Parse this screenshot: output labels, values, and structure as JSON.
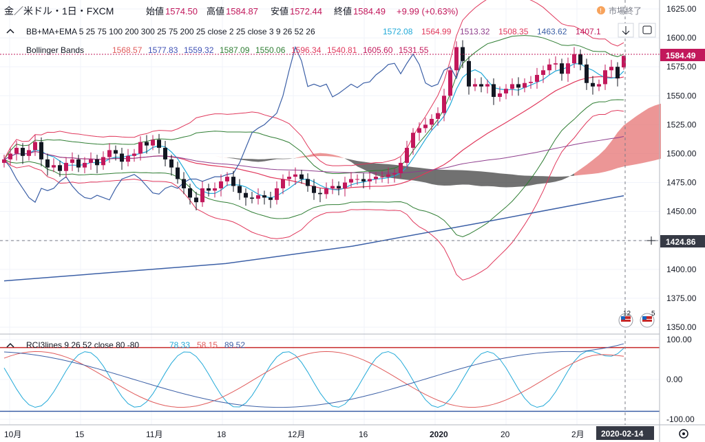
{
  "header": {
    "symbol": "金／米ドル・1日・FXCM",
    "open_label": "始値",
    "open": "1574.50",
    "high_label": "高値",
    "high": "1584.87",
    "low_label": "安値",
    "low": "1572.44",
    "close_label": "終値",
    "close": "1584.49",
    "change": "+9.99 (+0.63%)",
    "market_status": "市場終了",
    "market_status_icon": "info-icon"
  },
  "indicators": {
    "bb_ma_ema": {
      "name": "BB+MA+EMA 5 25 75 100 200 300 25 75 200 25 close 2 25 close 3 9 26 52 26",
      "values": [
        "1572.08",
        "1564.99",
        "1513.32",
        "1508.35",
        "1463.62",
        "1407.1"
      ],
      "colors": [
        "#21a9d8",
        "#e0375b",
        "#8e3d8d",
        "#e0375b",
        "#3b5fa6",
        "#c2185b"
      ]
    },
    "bollinger": {
      "name": "Bollinger Bands",
      "values": [
        "1568.57",
        "1577.83",
        "1559.32",
        "1587.09",
        "1550.06",
        "1596.34",
        "1540.81",
        "1605.60",
        "1531.55"
      ],
      "colors": [
        "#e05a5a",
        "#3f51b5",
        "#3f51b5",
        "#2e7d32",
        "#2e7d32",
        "#e0375b",
        "#e0375b",
        "#c2185b",
        "#c2185b"
      ]
    },
    "rci": {
      "name": "RCI3lines 9 26 52 close 80 -80",
      "values": [
        "78.33",
        "58.15",
        "89.52"
      ],
      "colors": [
        "#21a9d8",
        "#e05a5a",
        "#3b5fa6"
      ]
    }
  },
  "price_axis": {
    "ticks": [
      "1625.00",
      "1600.00",
      "1575.00",
      "1550.00",
      "1525.00",
      "1500.00",
      "1475.00",
      "1450.00",
      "1425.00",
      "1400.00",
      "1375.00",
      "1350.00"
    ],
    "current_price": "1584.49",
    "crosshair_price": "1424.86"
  },
  "rci_axis": {
    "ticks": [
      "100.00",
      "0.00",
      "-100.00"
    ]
  },
  "time_axis": {
    "labels": [
      "10月",
      "15",
      "11月",
      "18",
      "12月",
      "16",
      "2020",
      "20",
      "2月"
    ],
    "crosshair_date": "2020-02-14"
  },
  "event_flags": [
    "12",
    "5"
  ],
  "colors": {
    "bull": "#c2185b",
    "bear": "#131722",
    "cloud_bull": "#e57373",
    "cloud_bear": "#424242",
    "bb_outer": "#e0375b",
    "bb_inner": "#2e7d32",
    "ema_long": "#3b5fa6"
  },
  "chart_data": {
    "type": "candlestick",
    "title": "金／米ドル・1日・FXCM",
    "x_range": [
      "2019-09-30",
      "2020-02-14"
    ],
    "ylim": [
      1350,
      1625
    ],
    "last_candle": {
      "date": "2020-02-14",
      "open": 1574.5,
      "high": 1584.87,
      "low": 1572.44,
      "close": 1584.49
    },
    "closes": [
      1495,
      1500,
      1505,
      1498,
      1503,
      1510,
      1495,
      1488,
      1490,
      1485,
      1492,
      1495,
      1488,
      1492,
      1495,
      1490,
      1497,
      1503,
      1500,
      1493,
      1498,
      1500,
      1510,
      1507,
      1512,
      1505,
      1495,
      1488,
      1478,
      1470,
      1462,
      1458,
      1470,
      1468,
      1470,
      1476,
      1480,
      1472,
      1466,
      1462,
      1461,
      1464,
      1462,
      1460,
      1470,
      1478,
      1480,
      1482,
      1478,
      1472,
      1466,
      1465,
      1470,
      1472,
      1470,
      1475,
      1478,
      1478,
      1476,
      1478,
      1480,
      1480,
      1482,
      1483,
      1492,
      1505,
      1518,
      1522,
      1525,
      1530,
      1535,
      1550,
      1572,
      1592,
      1580,
      1558,
      1560,
      1558,
      1560,
      1549,
      1552,
      1556,
      1560,
      1557,
      1561,
      1562,
      1568,
      1572,
      1577,
      1578,
      1569,
      1578,
      1586,
      1577,
      1561,
      1558,
      1560,
      1572,
      1575,
      1565,
      1584.49
    ],
    "series": [
      {
        "name": "EMA 200",
        "x": [
          "2019-09-30",
          "2019-11-18",
          "2019-12-16",
          "2020-01-13",
          "2020-02-14"
        ],
        "values": [
          1390,
          1405,
          1420,
          1440,
          1463.62
        ]
      },
      {
        "name": "RCI 9",
        "last": 78.33
      },
      {
        "name": "RCI 26",
        "last": 58.15
      },
      {
        "name": "RCI 52",
        "last": 89.52
      }
    ]
  }
}
